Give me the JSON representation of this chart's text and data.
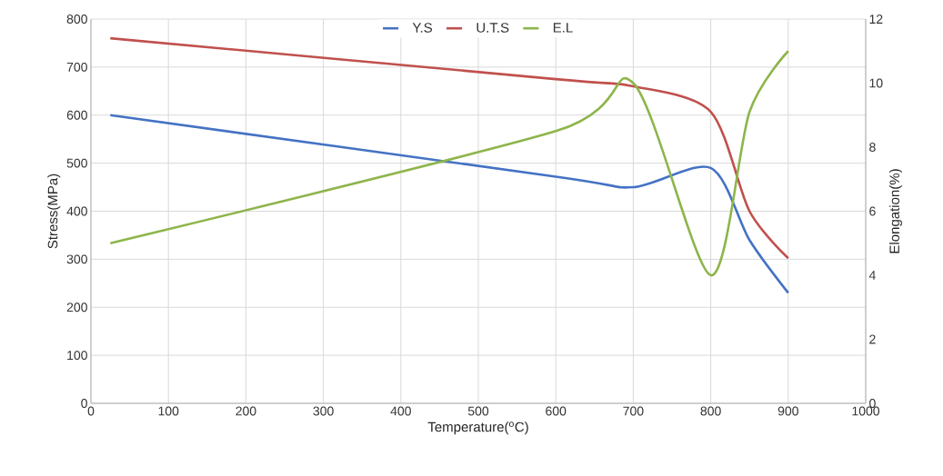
{
  "chart_data": {
    "type": "line",
    "xlabel": "Temperature($^{o}$C)",
    "ylabel": "Stress(MPa)",
    "y2label": "Elongation(%)",
    "x": [
      25,
      600,
      700,
      800,
      850,
      900
    ],
    "series": [
      {
        "name": "Y.S",
        "color": "#4472c4",
        "values": [
          600,
          472,
          450,
          490,
          340,
          230
        ]
      },
      {
        "name": "U.T.S",
        "color": "#c0504d",
        "values": [
          760,
          675,
          660,
          607,
          400,
          302
        ]
      },
      {
        "name": "E.L",
        "color": "#8db54b",
        "values": [
          5,
          8.5,
          10,
          4,
          9.1,
          11
        ],
        "axis": "y2"
      }
    ],
    "xlim": [
      0,
      1000
    ],
    "xticks": [
      0,
      100,
      200,
      300,
      400,
      500,
      600,
      700,
      800,
      900,
      1000
    ],
    "ylim": [
      0,
      800
    ],
    "yticks": [
      0,
      100,
      200,
      300,
      400,
      500,
      600,
      700,
      800
    ],
    "y2lim": [
      0,
      12
    ],
    "y2ticks": [
      0,
      2,
      4,
      6,
      8,
      10,
      12
    ],
    "grid": true,
    "legend": "top"
  }
}
